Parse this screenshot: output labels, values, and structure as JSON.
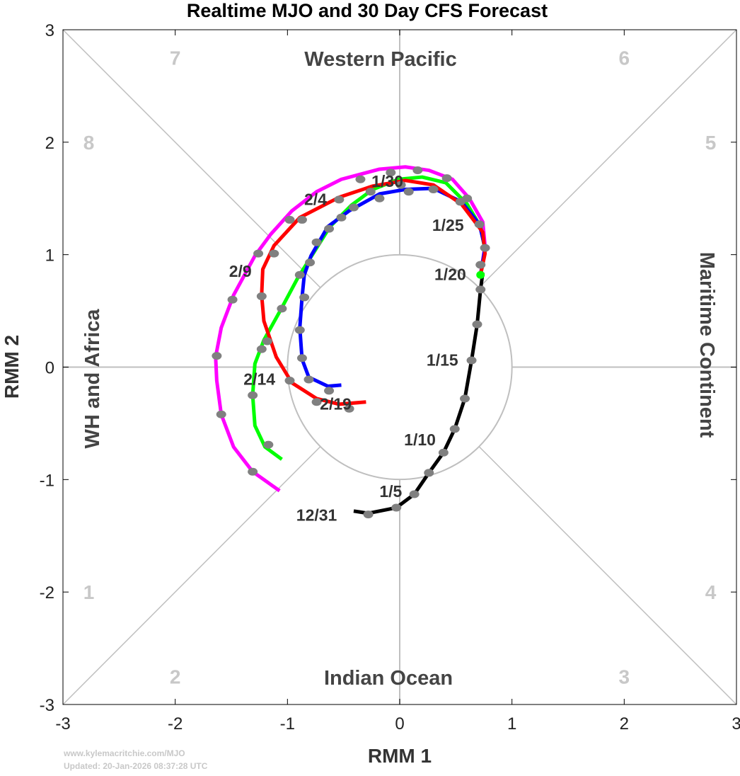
{
  "chart_data": {
    "type": "line",
    "title": "Realtime MJO and 30 Day CFS Forecast",
    "xlabel": "RMM 1",
    "ylabel": "RMM 2",
    "xlim": [
      -3,
      3
    ],
    "ylim": [
      -3,
      3
    ],
    "xticks": [
      "-3",
      "-2",
      "-1",
      "0",
      "1",
      "2",
      "3"
    ],
    "yticks": [
      "-3",
      "-2",
      "-1",
      "0",
      "1",
      "2",
      "3"
    ],
    "regions": [
      {
        "label": "Western Pacific",
        "pos": "top"
      },
      {
        "label": "Indian Ocean",
        "pos": "bottom"
      },
      {
        "label": "WH and Africa",
        "pos": "left"
      },
      {
        "label": "Maritime Continent",
        "pos": "right"
      }
    ],
    "phases": [
      {
        "label": "7",
        "x": -2.0,
        "y": 2.75
      },
      {
        "label": "6",
        "x": 2.0,
        "y": 2.75
      },
      {
        "label": "8",
        "x": -2.77,
        "y": 2.0
      },
      {
        "label": "5",
        "x": 2.77,
        "y": 2.0
      },
      {
        "label": "1",
        "x": -2.77,
        "y": -2.0
      },
      {
        "label": "4",
        "x": 2.77,
        "y": -2.0
      },
      {
        "label": "2",
        "x": -2.0,
        "y": -2.75
      },
      {
        "label": "3",
        "x": 2.0,
        "y": -2.75
      }
    ],
    "series": [
      {
        "name": "observed",
        "color": "#000000",
        "points": [
          [
            -0.41,
            -1.28
          ],
          [
            -0.28,
            -1.3
          ],
          [
            -0.03,
            -1.25
          ],
          [
            0.13,
            -1.13
          ],
          [
            0.26,
            -0.94
          ],
          [
            0.39,
            -0.76
          ],
          [
            0.49,
            -0.55
          ],
          [
            0.58,
            -0.28
          ],
          [
            0.64,
            0.06
          ],
          [
            0.69,
            0.38
          ],
          [
            0.72,
            0.69
          ],
          [
            0.74,
            0.84
          ]
        ]
      },
      {
        "name": "forecast-magenta",
        "color": "#ff00ff",
        "points": [
          [
            0.72,
            0.82
          ],
          [
            0.76,
            1.08
          ],
          [
            0.74,
            1.29
          ],
          [
            0.62,
            1.5
          ],
          [
            0.47,
            1.67
          ],
          [
            0.26,
            1.75
          ],
          [
            0.05,
            1.78
          ],
          [
            -0.18,
            1.76
          ],
          [
            -0.52,
            1.67
          ],
          [
            -0.74,
            1.56
          ],
          [
            -0.96,
            1.39
          ],
          [
            -1.15,
            1.18
          ],
          [
            -1.29,
            0.99
          ],
          [
            -1.48,
            0.64
          ],
          [
            -1.59,
            0.35
          ],
          [
            -1.64,
            0.09
          ],
          [
            -1.63,
            -0.12
          ],
          [
            -1.59,
            -0.42
          ],
          [
            -1.48,
            -0.71
          ],
          [
            -1.31,
            -0.93
          ],
          [
            -1.07,
            -1.1
          ]
        ]
      },
      {
        "name": "forecast-green",
        "color": "#00ff00",
        "points": [
          [
            0.72,
            0.82
          ],
          [
            0.76,
            1.04
          ],
          [
            0.72,
            1.25
          ],
          [
            0.6,
            1.45
          ],
          [
            0.41,
            1.64
          ],
          [
            0.2,
            1.69
          ],
          [
            -0.01,
            1.67
          ],
          [
            -0.24,
            1.58
          ],
          [
            -0.43,
            1.44
          ],
          [
            -0.62,
            1.25
          ],
          [
            -0.79,
            0.98
          ],
          [
            -0.91,
            0.79
          ],
          [
            -1.06,
            0.51
          ],
          [
            -1.21,
            0.24
          ],
          [
            -1.29,
            0.03
          ],
          [
            -1.31,
            -0.25
          ],
          [
            -1.29,
            -0.52
          ],
          [
            -1.2,
            -0.71
          ],
          [
            -1.05,
            -0.82
          ]
        ]
      },
      {
        "name": "forecast-blue",
        "color": "#0000ff",
        "points": [
          [
            0.72,
            0.82
          ],
          [
            0.76,
            1.06
          ],
          [
            0.71,
            1.27
          ],
          [
            0.55,
            1.47
          ],
          [
            0.3,
            1.59
          ],
          [
            0.05,
            1.58
          ],
          [
            -0.18,
            1.54
          ],
          [
            -0.45,
            1.39
          ],
          [
            -0.64,
            1.25
          ],
          [
            -0.79,
            0.99
          ],
          [
            -0.85,
            0.82
          ],
          [
            -0.87,
            0.62
          ],
          [
            -0.89,
            0.35
          ],
          [
            -0.87,
            0.07
          ],
          [
            -0.81,
            -0.09
          ],
          [
            -0.64,
            -0.17
          ],
          [
            -0.52,
            -0.16
          ]
        ]
      },
      {
        "name": "forecast-red",
        "color": "#ff0000",
        "points": [
          [
            0.72,
            0.82
          ],
          [
            0.76,
            1.01
          ],
          [
            0.74,
            1.2
          ],
          [
            0.55,
            1.45
          ],
          [
            0.3,
            1.62
          ],
          [
            0.05,
            1.66
          ],
          [
            -0.24,
            1.61
          ],
          [
            -0.54,
            1.51
          ],
          [
            -0.89,
            1.33
          ],
          [
            -1.12,
            1.08
          ],
          [
            -1.22,
            0.87
          ],
          [
            -1.23,
            0.64
          ],
          [
            -1.21,
            0.41
          ],
          [
            -1.1,
            0.09
          ],
          [
            -0.96,
            -0.14
          ],
          [
            -0.74,
            -0.28
          ],
          [
            -0.54,
            -0.33
          ],
          [
            -0.3,
            -0.31
          ]
        ]
      }
    ],
    "markers": {
      "color": "#808080",
      "points": [
        [
          -0.28,
          -1.31
        ],
        [
          -0.03,
          -1.25
        ],
        [
          0.13,
          -1.13
        ],
        [
          0.26,
          -0.94
        ],
        [
          0.39,
          -0.76
        ],
        [
          0.49,
          -0.55
        ],
        [
          0.58,
          -0.28
        ],
        [
          0.64,
          0.06
        ],
        [
          0.69,
          0.38
        ],
        [
          0.72,
          0.69
        ],
        [
          0.72,
          0.91
        ],
        [
          0.76,
          1.06
        ],
        [
          0.71,
          1.27
        ],
        [
          0.54,
          1.47
        ],
        [
          0.6,
          1.5
        ],
        [
          0.42,
          1.68
        ],
        [
          0.3,
          1.58
        ],
        [
          0.16,
          1.75
        ],
        [
          0.08,
          1.56
        ],
        [
          0.01,
          1.62
        ],
        [
          -0.08,
          1.73
        ],
        [
          -0.18,
          1.5
        ],
        [
          -0.26,
          1.56
        ],
        [
          -0.35,
          1.67
        ],
        [
          -0.41,
          1.42
        ],
        [
          -0.54,
          1.49
        ],
        [
          -0.52,
          1.33
        ],
        [
          -0.63,
          1.23
        ],
        [
          -0.74,
          1.11
        ],
        [
          -0.87,
          1.31
        ],
        [
          -0.98,
          1.31
        ],
        [
          -1.12,
          1.01
        ],
        [
          -1.26,
          1.01
        ],
        [
          -0.8,
          0.93
        ],
        [
          -0.89,
          0.82
        ],
        [
          -0.85,
          0.62
        ],
        [
          -1.05,
          0.52
        ],
        [
          -1.23,
          0.63
        ],
        [
          -1.49,
          0.6
        ],
        [
          -0.89,
          0.33
        ],
        [
          -1.18,
          0.23
        ],
        [
          -1.23,
          0.16
        ],
        [
          -1.63,
          0.1
        ],
        [
          -0.87,
          0.08
        ],
        [
          -0.81,
          -0.11
        ],
        [
          -0.98,
          -0.12
        ],
        [
          -0.63,
          -0.21
        ],
        [
          -1.31,
          -0.25
        ],
        [
          -0.74,
          -0.31
        ],
        [
          -0.45,
          -0.37
        ],
        [
          -1.59,
          -0.42
        ],
        [
          -1.17,
          -0.69
        ],
        [
          -1.31,
          -0.93
        ]
      ]
    },
    "current_marker": {
      "color": "#00ff00",
      "x": 0.72,
      "y": 0.82
    },
    "date_labels": [
      {
        "text": "12/31",
        "x": -0.74,
        "y": -1.31
      },
      {
        "text": "1/5",
        "x": -0.08,
        "y": -1.1
      },
      {
        "text": "1/10",
        "x": 0.18,
        "y": -0.64
      },
      {
        "text": "1/15",
        "x": 0.38,
        "y": 0.07
      },
      {
        "text": "1/20",
        "x": 0.45,
        "y": 0.83
      },
      {
        "text": "1/25",
        "x": 0.43,
        "y": 1.27
      },
      {
        "text": "1/30",
        "x": -0.11,
        "y": 1.66
      },
      {
        "text": "2/4",
        "x": -0.75,
        "y": 1.5
      },
      {
        "text": "2/9",
        "x": -1.42,
        "y": 0.86
      },
      {
        "text": "2/14",
        "x": -1.25,
        "y": -0.1
      },
      {
        "text": "2/19",
        "x": -0.57,
        "y": -0.32
      }
    ],
    "grid": false
  },
  "footer": {
    "source": "www.kylemacritchie.com/MJO",
    "updated": "Updated: 20-Jan-2026 08:37:28 UTC"
  }
}
